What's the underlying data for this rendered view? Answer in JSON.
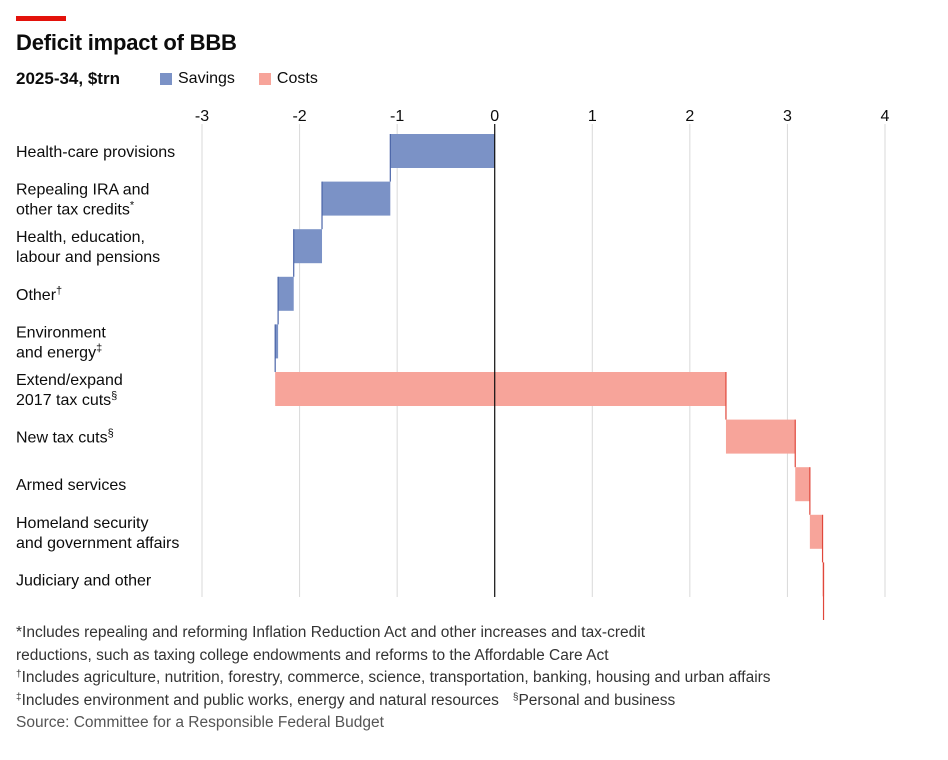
{
  "header": {
    "title": "Deficit impact of BBB",
    "subtitle": "2025-34, $trn"
  },
  "chart_data": {
    "type": "bar",
    "subtype": "waterfall",
    "orientation": "horizontal",
    "title": "Deficit impact of BBB",
    "subtitle": "2025-34, $trn",
    "xlim": [
      -3,
      4
    ],
    "x_ticks": [
      "-3",
      "-2",
      "-1",
      "0",
      "1",
      "2",
      "3",
      "4"
    ],
    "grid": true,
    "legend_position": "top-left",
    "series": [
      {
        "name": "Savings",
        "color": "#7b92c6"
      },
      {
        "name": "Costs",
        "color": "#f7a49a"
      }
    ],
    "categories": [
      {
        "label_lines": [
          "Health-care provisions"
        ],
        "sup": "",
        "series": "Savings",
        "start": 0,
        "end": -1.07
      },
      {
        "label_lines": [
          "Repealing IRA and",
          "other tax credits"
        ],
        "sup": "*",
        "series": "Savings",
        "start": -1.07,
        "end": -1.77
      },
      {
        "label_lines": [
          "Health, education,",
          "labour and pensions"
        ],
        "sup": "",
        "series": "Savings",
        "start": -1.77,
        "end": -2.06
      },
      {
        "label_lines": [
          "Other"
        ],
        "sup": "†",
        "series": "Savings",
        "start": -2.06,
        "end": -2.22
      },
      {
        "label_lines": [
          "Environment",
          "and energy"
        ],
        "sup": "‡",
        "series": "Savings",
        "start": -2.22,
        "end": -2.25
      },
      {
        "label_lines": [
          "Extend/expand",
          "2017 tax cuts"
        ],
        "sup": "§",
        "series": "Costs",
        "start": -2.25,
        "end": 2.37
      },
      {
        "label_lines": [
          "New tax cuts"
        ],
        "sup": "§",
        "series": "Costs",
        "start": 2.37,
        "end": 3.08
      },
      {
        "label_lines": [
          "Armed services"
        ],
        "sup": "",
        "series": "Costs",
        "start": 3.08,
        "end": 3.23
      },
      {
        "label_lines": [
          "Homeland security",
          "and government affairs"
        ],
        "sup": "",
        "series": "Costs",
        "start": 3.23,
        "end": 3.36
      },
      {
        "label_lines": [
          "Judiciary and other"
        ],
        "sup": "",
        "series": "Costs",
        "start": 3.36,
        "end": 3.37
      }
    ]
  },
  "footnotes": {
    "star_mark": "*",
    "star_line1": "Includes repealing and reforming Inflation Reduction Act and other increases and tax-credit",
    "star_line2": "reductions, such as taxing college endowments and reforms to the Affordable Care Act",
    "dagger_mark": "†",
    "dagger_text": "Includes agriculture, nutrition, forestry, commerce, science, transportation, banking, housing and urban affairs",
    "ddagger_mark": "‡",
    "ddagger_text": "Includes environment and public works, energy and natural resources",
    "section_mark": "§",
    "section_text": "Personal and business",
    "source": "Source: Committee for a Responsible Federal Budget"
  }
}
